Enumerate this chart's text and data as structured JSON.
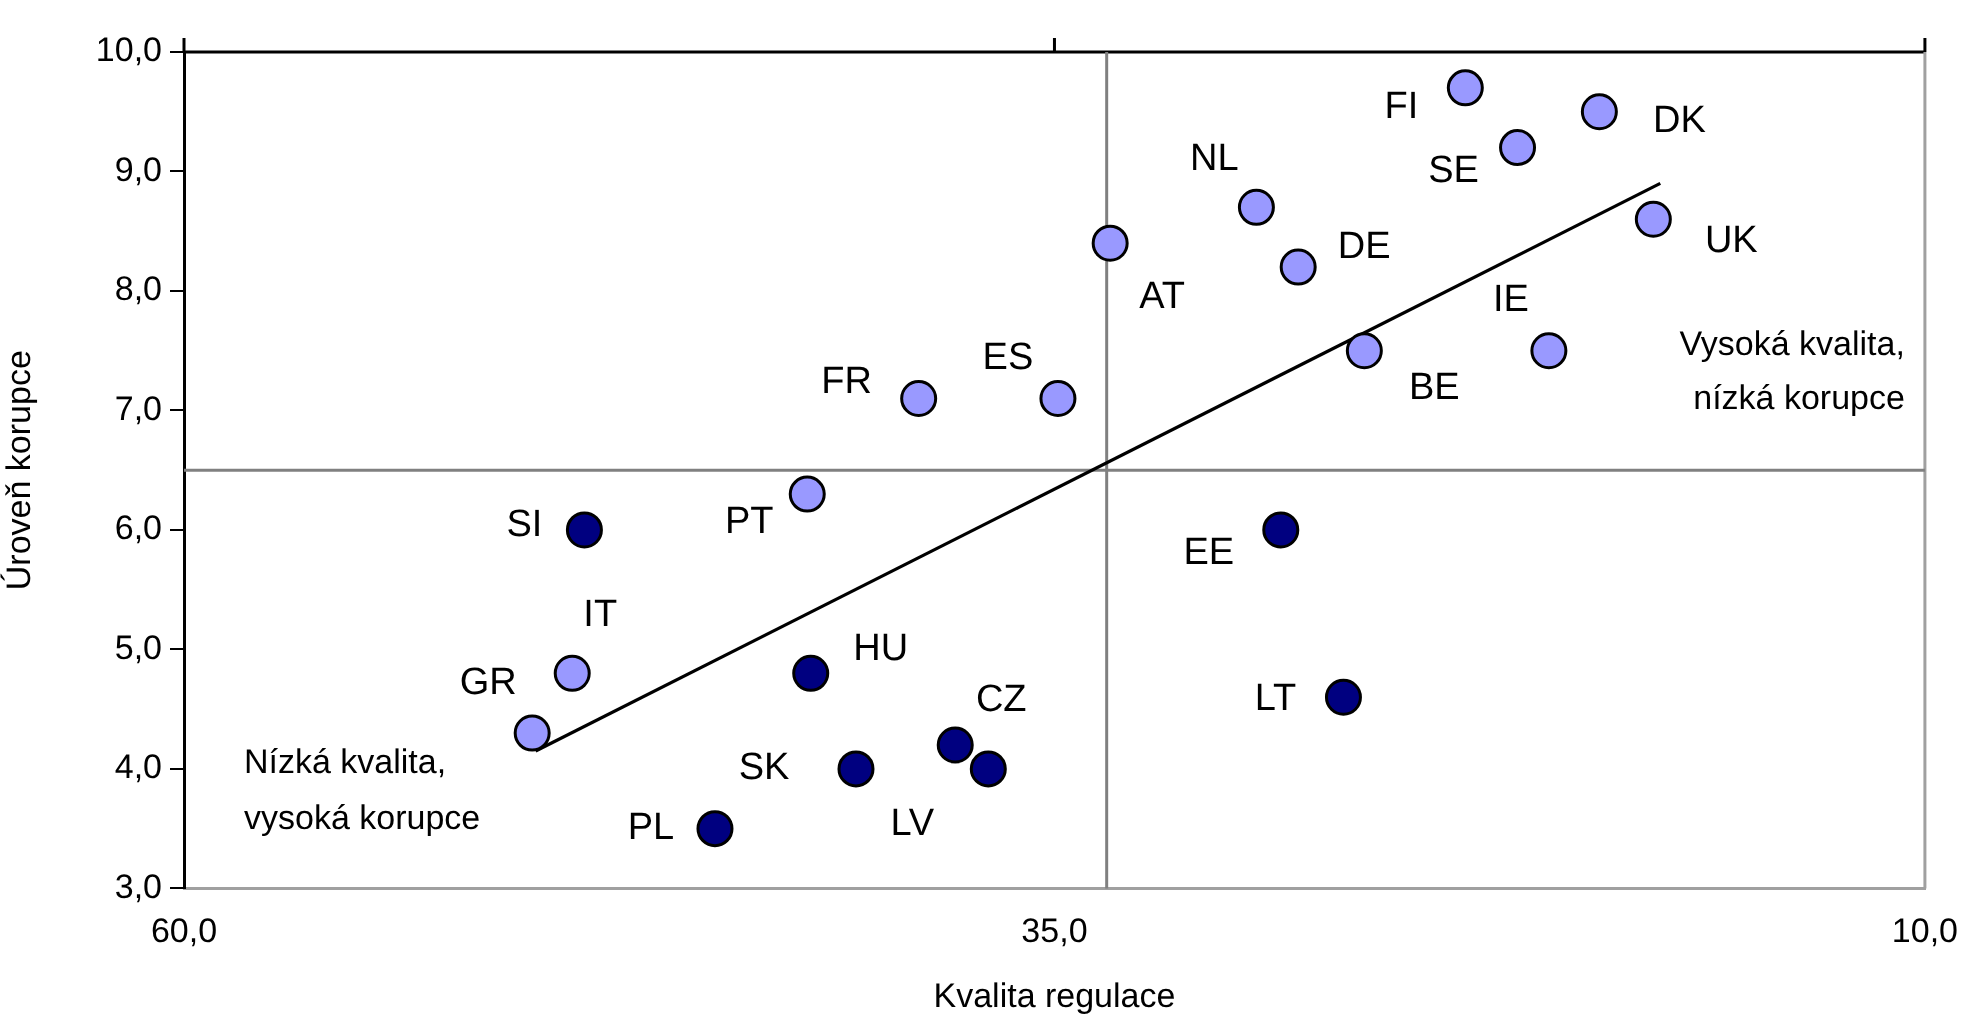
{
  "chart_data": {
    "type": "scatter",
    "xlabel": "Kvalita regulace",
    "ylabel": "Úroveň korupce",
    "xlim": [
      60,
      10
    ],
    "xticks": [
      {
        "value": 60,
        "label": "60,0"
      },
      {
        "value": 35,
        "label": "35,0"
      },
      {
        "value": 10,
        "label": "10,0"
      }
    ],
    "ylim": [
      3,
      10
    ],
    "yticks": [
      {
        "value": 3,
        "label": "3,0"
      },
      {
        "value": 4,
        "label": "4,0"
      },
      {
        "value": 5,
        "label": "5,0"
      },
      {
        "value": 6,
        "label": "6,0"
      },
      {
        "value": 7,
        "label": "7,0"
      },
      {
        "value": 8,
        "label": "8,0"
      },
      {
        "value": 9,
        "label": "9,0"
      },
      {
        "value": 10,
        "label": "10,0"
      }
    ],
    "grid": false,
    "legend": false,
    "marker": "circle",
    "series": [
      {
        "color": "#9999ff",
        "x": [
          38.9,
          34.9,
          42.1,
          48.85,
          50.0,
          33.4,
          29.2,
          28.0,
          23.2,
          21.7,
          19.35,
          17.8,
          26.1,
          20.8
        ],
        "values": [
          7.1,
          7.1,
          6.3,
          4.8,
          4.3,
          8.4,
          8.7,
          8.2,
          9.7,
          9.2,
          9.5,
          8.6,
          7.5,
          7.5
        ]
      },
      {
        "color": "#000080",
        "x": [
          48.5,
          42.0,
          40.7,
          37.85,
          36.9,
          44.75,
          28.5,
          26.7
        ],
        "values": [
          6.0,
          4.8,
          4.0,
          4.2,
          4.0,
          3.5,
          6.0,
          4.6
        ]
      },
      {
        "type": "line",
        "color": "#000000",
        "marker": "none",
        "line_style": "solid",
        "x": [
          49.9,
          17.6
        ],
        "values": [
          4.15,
          8.9
        ]
      }
    ],
    "ref_lines": [
      {
        "axis": "x",
        "value": 33.5,
        "color": "#808080"
      },
      {
        "axis": "y",
        "value": 6.5,
        "color": "#808080"
      }
    ],
    "annotations": [
      {
        "text": "FR",
        "x": 38.9,
        "y": 7.1
      },
      {
        "text": "ES",
        "x": 34.9,
        "y": 7.1
      },
      {
        "text": "PT",
        "x": 42.1,
        "y": 6.3
      },
      {
        "text": "IT",
        "x": 48.85,
        "y": 4.8
      },
      {
        "text": "GR",
        "x": 50.0,
        "y": 4.3
      },
      {
        "text": "AT",
        "x": 33.4,
        "y": 8.4
      },
      {
        "text": "NL",
        "x": 29.2,
        "y": 8.7
      },
      {
        "text": "DE",
        "x": 28.0,
        "y": 8.2
      },
      {
        "text": "FI",
        "x": 23.2,
        "y": 9.7
      },
      {
        "text": "SE",
        "x": 21.7,
        "y": 9.2
      },
      {
        "text": "DK",
        "x": 19.35,
        "y": 9.5
      },
      {
        "text": "UK",
        "x": 17.8,
        "y": 8.6
      },
      {
        "text": "BE",
        "x": 26.1,
        "y": 7.5
      },
      {
        "text": "IE",
        "x": 20.8,
        "y": 7.5
      },
      {
        "text": "SI",
        "x": 48.5,
        "y": 6.0
      },
      {
        "text": "HU",
        "x": 42.0,
        "y": 4.8
      },
      {
        "text": "SK",
        "x": 40.7,
        "y": 4.0
      },
      {
        "text": "CZ",
        "x": 37.85,
        "y": 4.2
      },
      {
        "text": "LV",
        "x": 36.9,
        "y": 4.0
      },
      {
        "text": "PL",
        "x": 44.75,
        "y": 3.5
      },
      {
        "text": "EE",
        "x": 28.5,
        "y": 6.0
      },
      {
        "text": "LT",
        "x": 26.7,
        "y": 4.6
      },
      "Vysoká kvalita,\nnízká korupce",
      "Nízká kvalita,\nvysoká korupce"
    ]
  }
}
